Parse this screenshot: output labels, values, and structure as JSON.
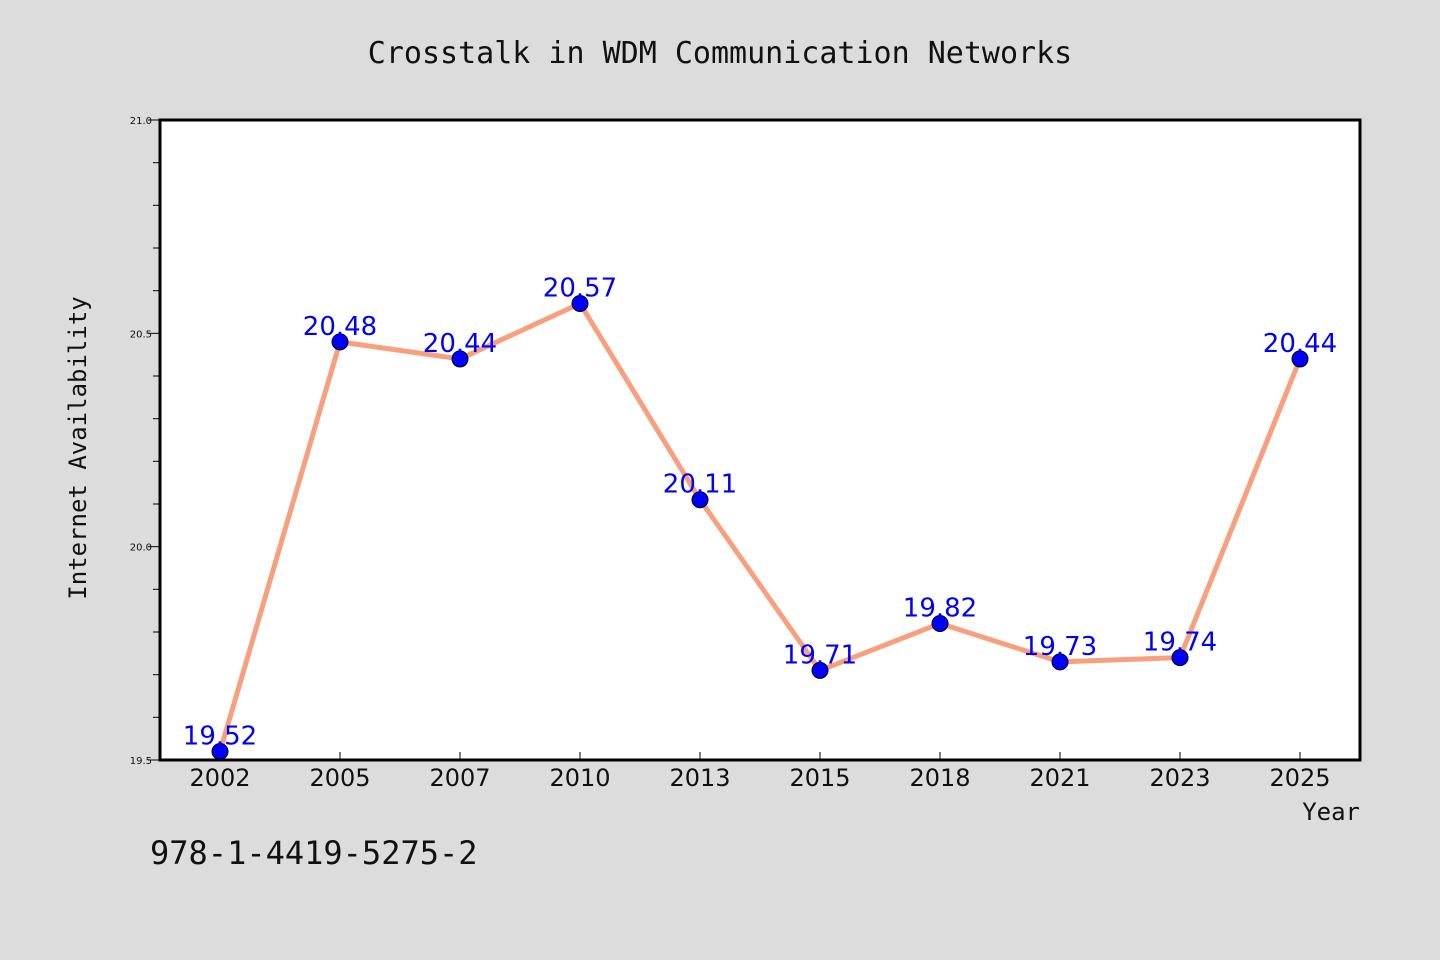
{
  "chart_data": {
    "type": "line",
    "title": "Crosstalk in WDM Communication Networks",
    "xlabel": "Year",
    "ylabel": "Internet Availability",
    "categories": [
      "2002",
      "2005",
      "2007",
      "2010",
      "2013",
      "2015",
      "2018",
      "2021",
      "2023",
      "2025"
    ],
    "values": [
      19.52,
      20.48,
      20.44,
      20.57,
      20.11,
      19.71,
      19.82,
      19.73,
      19.74,
      20.44
    ],
    "ylim": [
      19.5,
      21.0
    ],
    "yticks": [
      "19.5",
      "20.0",
      "20.5",
      "21.0"
    ],
    "data_labels": [
      "19.52",
      "20.48",
      "20.44",
      "20.57",
      "20.11",
      "19.71",
      "19.82",
      "19.73",
      "19.74",
      "20.44"
    ],
    "line_color": "#f8a07e",
    "marker_color": "#0000ff",
    "label_color": "#0000ff",
    "plot_background": "#ffffff",
    "figure_background": "#dcdcdc",
    "grid": false,
    "legend": "none"
  },
  "annotation": {
    "text": "978-1-4419-5275-2"
  }
}
